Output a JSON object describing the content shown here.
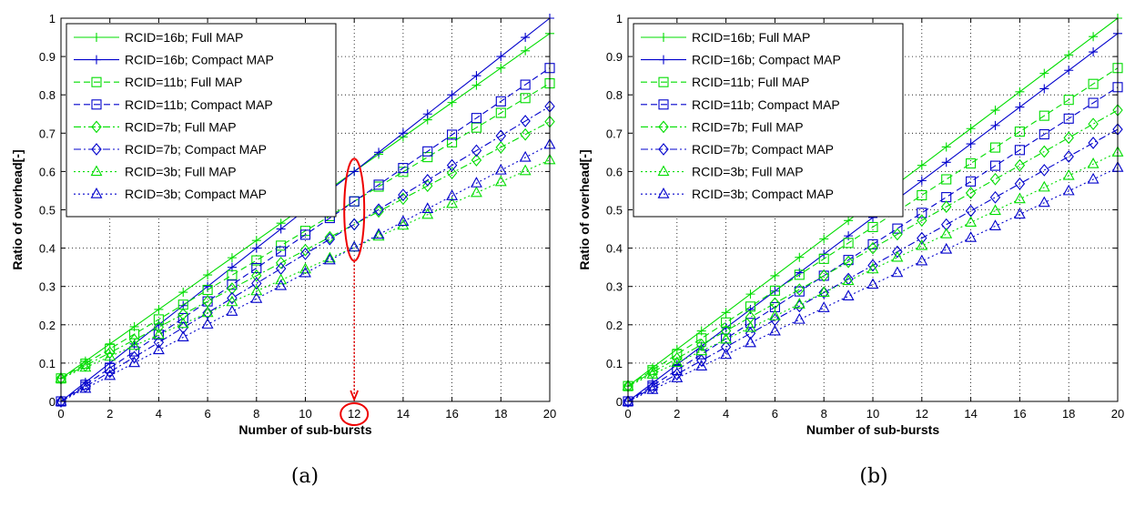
{
  "chart_data": [
    {
      "type": "line",
      "caption": "(a)",
      "xlabel": "Number of sub-bursts",
      "ylabel": "Ratio of overhead[-]",
      "xlim": [
        0,
        20
      ],
      "ylim": [
        0,
        1
      ],
      "xticks": [
        0,
        2,
        4,
        6,
        8,
        10,
        12,
        14,
        16,
        18,
        20
      ],
      "yticks": [
        0,
        0.1,
        0.2,
        0.3,
        0.4,
        0.5,
        0.6,
        0.7,
        0.8,
        0.9,
        1
      ],
      "grid": true,
      "legend_position": "top-left",
      "x": [
        0,
        1,
        2,
        3,
        4,
        5,
        6,
        7,
        8,
        9,
        10,
        11,
        12,
        13,
        14,
        15,
        16,
        17,
        18,
        19,
        20
      ],
      "series": [
        {
          "name": "RCID=16b; Full MAP",
          "color": "#00dd00",
          "dash": "solid",
          "marker": "plus",
          "values": [
            0.06,
            0.105,
            0.15,
            0.195,
            0.24,
            0.285,
            0.33,
            0.375,
            0.42,
            0.465,
            0.51,
            0.555,
            0.6,
            0.645,
            0.69,
            0.735,
            0.78,
            0.825,
            0.87,
            0.915,
            0.96
          ]
        },
        {
          "name": "RCID=16b; Compact MAP",
          "color": "#0000cc",
          "dash": "solid",
          "marker": "plus",
          "values": [
            0.0,
            0.05,
            0.1,
            0.15,
            0.2,
            0.25,
            0.3,
            0.35,
            0.4,
            0.45,
            0.5,
            0.55,
            0.6,
            0.65,
            0.7,
            0.75,
            0.8,
            0.85,
            0.9,
            0.95,
            1.0
          ]
        },
        {
          "name": "RCID=11b; Full MAP",
          "color": "#00dd00",
          "dash": "dash",
          "marker": "square",
          "values": [
            0.06,
            0.0985,
            0.137,
            0.1755,
            0.214,
            0.2525,
            0.291,
            0.3295,
            0.368,
            0.4065,
            0.445,
            0.4835,
            0.522,
            0.5605,
            0.599,
            0.6375,
            0.676,
            0.7145,
            0.753,
            0.7915,
            0.83
          ]
        },
        {
          "name": "RCID=11b; Compact MAP",
          "color": "#0000cc",
          "dash": "dash",
          "marker": "square",
          "values": [
            0.0,
            0.0435,
            0.087,
            0.1305,
            0.174,
            0.2175,
            0.261,
            0.3045,
            0.348,
            0.3915,
            0.435,
            0.4785,
            0.522,
            0.5655,
            0.609,
            0.6525,
            0.696,
            0.7395,
            0.783,
            0.8265,
            0.87
          ]
        },
        {
          "name": "RCID=7b; Full MAP",
          "color": "#00dd00",
          "dash": "dashdot",
          "marker": "diamond",
          "values": [
            0.06,
            0.0935,
            0.127,
            0.1605,
            0.194,
            0.2275,
            0.261,
            0.2945,
            0.328,
            0.3615,
            0.395,
            0.4285,
            0.462,
            0.4955,
            0.529,
            0.5625,
            0.596,
            0.6295,
            0.663,
            0.6965,
            0.73
          ]
        },
        {
          "name": "RCID=7b; Compact MAP",
          "color": "#0000cc",
          "dash": "dashdot",
          "marker": "diamond",
          "values": [
            0.0,
            0.0385,
            0.077,
            0.1155,
            0.154,
            0.1925,
            0.231,
            0.2695,
            0.308,
            0.3465,
            0.385,
            0.4235,
            0.462,
            0.5005,
            0.539,
            0.5775,
            0.616,
            0.6545,
            0.693,
            0.7315,
            0.77
          ]
        },
        {
          "name": "RCID=3b; Full MAP",
          "color": "#00dd00",
          "dash": "dot",
          "marker": "triangle",
          "values": [
            0.06,
            0.0885,
            0.117,
            0.1455,
            0.174,
            0.2025,
            0.231,
            0.2595,
            0.288,
            0.3165,
            0.345,
            0.3735,
            0.402,
            0.4305,
            0.459,
            0.4875,
            0.516,
            0.5445,
            0.573,
            0.6015,
            0.63
          ]
        },
        {
          "name": "RCID=3b; Compact MAP",
          "color": "#0000cc",
          "dash": "dot",
          "marker": "triangle",
          "values": [
            0.0,
            0.0335,
            0.067,
            0.1005,
            0.134,
            0.1675,
            0.201,
            0.2345,
            0.268,
            0.3015,
            0.335,
            0.3685,
            0.402,
            0.4355,
            0.469,
            0.5025,
            0.536,
            0.5695,
            0.603,
            0.6365,
            0.67
          ]
        }
      ],
      "annotation": {
        "x": 12,
        "y_range": [
          0.4,
          0.6
        ],
        "label": "12",
        "color": "#ee0000"
      }
    },
    {
      "type": "line",
      "caption": "(b)",
      "xlabel": "Number of sub-bursts",
      "ylabel": "Ratio of overhead[-]",
      "xlim": [
        0,
        20
      ],
      "ylim": [
        0,
        1
      ],
      "xticks": [
        0,
        2,
        4,
        6,
        8,
        10,
        12,
        14,
        16,
        18,
        20
      ],
      "yticks": [
        0,
        0.1,
        0.2,
        0.3,
        0.4,
        0.5,
        0.6,
        0.7,
        0.8,
        0.9,
        1
      ],
      "grid": true,
      "legend_position": "top-left",
      "x": [
        0,
        1,
        2,
        3,
        4,
        5,
        6,
        7,
        8,
        9,
        10,
        11,
        12,
        13,
        14,
        15,
        16,
        17,
        18,
        19,
        20
      ],
      "series": [
        {
          "name": "RCID=16b; Full MAP",
          "color": "#00dd00",
          "dash": "solid",
          "marker": "plus",
          "values": [
            0.04,
            0.088,
            0.136,
            0.184,
            0.232,
            0.28,
            0.328,
            0.376,
            0.424,
            0.472,
            0.52,
            0.568,
            0.616,
            0.664,
            0.712,
            0.76,
            0.808,
            0.856,
            0.904,
            0.952,
            1.0
          ]
        },
        {
          "name": "RCID=16b; Compact MAP",
          "color": "#0000cc",
          "dash": "solid",
          "marker": "plus",
          "values": [
            0.0,
            0.048,
            0.096,
            0.144,
            0.192,
            0.24,
            0.288,
            0.336,
            0.384,
            0.432,
            0.48,
            0.528,
            0.576,
            0.624,
            0.672,
            0.72,
            0.768,
            0.816,
            0.864,
            0.912,
            0.96
          ]
        },
        {
          "name": "RCID=11b; Full MAP",
          "color": "#00dd00",
          "dash": "dash",
          "marker": "square",
          "values": [
            0.04,
            0.0815,
            0.123,
            0.1645,
            0.206,
            0.2475,
            0.289,
            0.3305,
            0.372,
            0.4135,
            0.455,
            0.4965,
            0.538,
            0.5795,
            0.621,
            0.6625,
            0.704,
            0.7455,
            0.787,
            0.8285,
            0.87
          ]
        },
        {
          "name": "RCID=11b; Compact MAP",
          "color": "#0000cc",
          "dash": "dash",
          "marker": "square",
          "values": [
            0.0,
            0.041,
            0.082,
            0.123,
            0.164,
            0.205,
            0.246,
            0.287,
            0.328,
            0.369,
            0.41,
            0.451,
            0.492,
            0.533,
            0.574,
            0.615,
            0.656,
            0.697,
            0.738,
            0.779,
            0.82
          ]
        },
        {
          "name": "RCID=7b; Full MAP",
          "color": "#00dd00",
          "dash": "dashdot",
          "marker": "diamond",
          "values": [
            0.04,
            0.076,
            0.112,
            0.148,
            0.184,
            0.22,
            0.256,
            0.292,
            0.328,
            0.364,
            0.4,
            0.436,
            0.472,
            0.508,
            0.544,
            0.58,
            0.616,
            0.652,
            0.688,
            0.724,
            0.76
          ]
        },
        {
          "name": "RCID=7b; Compact MAP",
          "color": "#0000cc",
          "dash": "dashdot",
          "marker": "diamond",
          "values": [
            0.0,
            0.0355,
            0.071,
            0.1065,
            0.142,
            0.1775,
            0.213,
            0.2485,
            0.284,
            0.3195,
            0.355,
            0.3905,
            0.426,
            0.4615,
            0.497,
            0.5325,
            0.568,
            0.6035,
            0.639,
            0.6745,
            0.71
          ]
        },
        {
          "name": "RCID=3b; Full MAP",
          "color": "#00dd00",
          "dash": "dot",
          "marker": "triangle",
          "values": [
            0.04,
            0.0705,
            0.101,
            0.1315,
            0.162,
            0.1925,
            0.223,
            0.2535,
            0.284,
            0.3145,
            0.345,
            0.3755,
            0.406,
            0.4365,
            0.467,
            0.4975,
            0.528,
            0.5585,
            0.589,
            0.6195,
            0.65
          ]
        },
        {
          "name": "RCID=3b; Compact MAP",
          "color": "#0000cc",
          "dash": "dot",
          "marker": "triangle",
          "values": [
            0.0,
            0.0305,
            0.061,
            0.0915,
            0.122,
            0.1525,
            0.183,
            0.2135,
            0.244,
            0.2745,
            0.305,
            0.3355,
            0.366,
            0.3965,
            0.427,
            0.4575,
            0.488,
            0.5185,
            0.549,
            0.5795,
            0.61
          ]
        }
      ]
    }
  ]
}
